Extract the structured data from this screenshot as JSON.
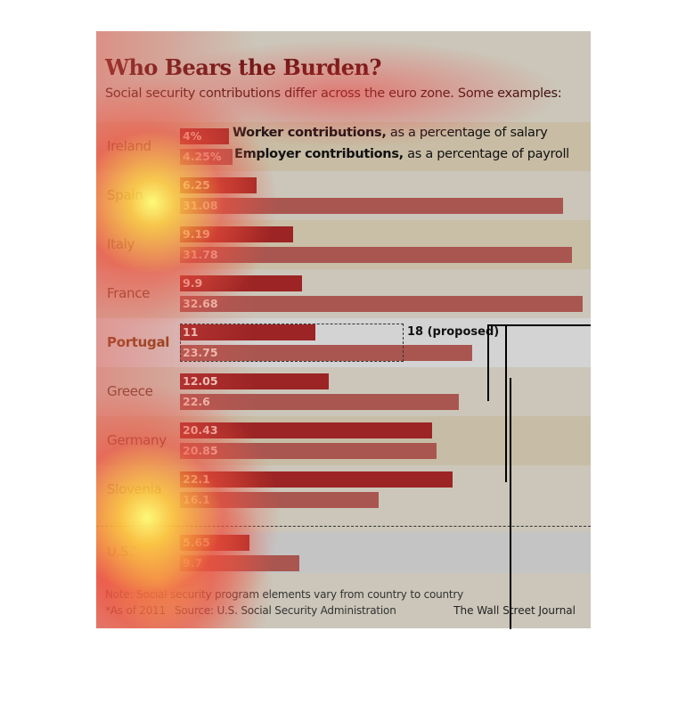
{
  "chart_data": {
    "type": "bar",
    "orientation": "horizontal",
    "title": "Who Bears the Burden?",
    "subtitle": "Social security contributions differ across the euro zone.  Some examples:",
    "categories": [
      "Ireland",
      "Spain",
      "Italy",
      "France",
      "Portugal",
      "Greece",
      "Germany",
      "Slovenia",
      "U.S."
    ],
    "series": [
      {
        "name": "Worker contributions",
        "legend_bold": "Worker contributions,",
        "legend_rest": " as a percentage of salary",
        "color": "#9c2424",
        "values": [
          4,
          6.25,
          9.19,
          9.9,
          11,
          12.05,
          20.43,
          22.1,
          5.65
        ],
        "labels": [
          "4%",
          "6.25",
          "9.19",
          "9.9",
          "11",
          "12.05",
          "20.43",
          "22.1",
          "5.65"
        ]
      },
      {
        "name": "Employer contributions",
        "legend_bold": "Employer contributions,",
        "legend_rest": " as a percentage of payroll",
        "color": "#aa5650",
        "values": [
          4.25,
          31.08,
          31.78,
          32.68,
          23.75,
          22.6,
          20.85,
          16.1,
          9.7
        ],
        "labels": [
          "4.25%",
          "31.08",
          "31.78",
          "32.68",
          "23.75",
          "22.6",
          "20.85",
          "16.1",
          "9.7"
        ]
      }
    ],
    "us_footnote_mark": "*",
    "annotation": {
      "category": "Portugal",
      "value": 18,
      "label": "18 (proposed)"
    },
    "xlim": [
      0,
      32.68
    ]
  },
  "footer": {
    "note": "Note: Social security program elements vary from country to country",
    "as_of": "*As of 2011",
    "source": "Source: U.S. Social Security Administration",
    "credit": "The Wall Street Journal"
  }
}
